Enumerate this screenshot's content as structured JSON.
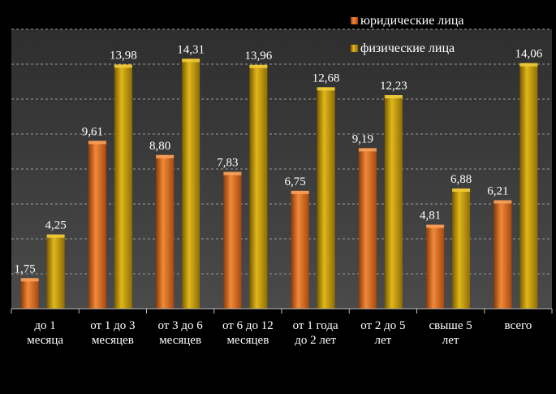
{
  "chart_data": {
    "type": "bar",
    "categories": [
      [
        "до 1",
        "месяца"
      ],
      [
        "от 1 до 3",
        "месяцев"
      ],
      [
        "от 3 до 6",
        "месяцев"
      ],
      [
        "от 6 до 12",
        "месяцев"
      ],
      [
        "от 1 года",
        "до 2 лет"
      ],
      [
        "от 2 до 5",
        "лет"
      ],
      [
        "свыше 5",
        "лет"
      ],
      [
        "всего"
      ]
    ],
    "series": [
      {
        "name": "юридические лица",
        "values": [
          1.75,
          9.61,
          8.8,
          7.83,
          6.75,
          9.19,
          4.81,
          6.21
        ],
        "labels": [
          "1,75",
          "9,61",
          "8,80",
          "7,83",
          "6,75",
          "9,19",
          "4,81",
          "6,21"
        ],
        "color": "#d2691e"
      },
      {
        "name": "физические лица",
        "values": [
          4.25,
          13.98,
          14.31,
          13.96,
          12.68,
          12.23,
          6.88,
          14.06
        ],
        "labels": [
          "4,25",
          "13,98",
          "14,31",
          "13,96",
          "12,68",
          "12,23",
          "6,88",
          "14,06"
        ],
        "color": "#b8900a"
      }
    ],
    "ylim": [
      0,
      16
    ],
    "grid": true,
    "legend": "top-right",
    "colors": {
      "background": "#000000",
      "plot_area": "#3a3a3a",
      "gridline": "#9a9a9a",
      "text": "#ffffff"
    }
  }
}
